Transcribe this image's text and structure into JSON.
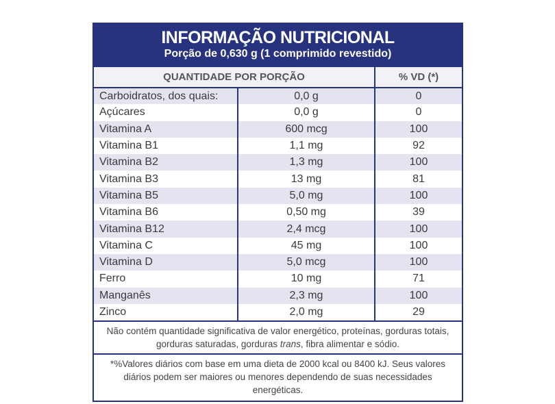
{
  "header": {
    "title": "INFORMAÇÃO NUTRICIONAL",
    "subtitle": "Porção de 0,630 g (1 comprimido revestido)"
  },
  "table": {
    "columns": [
      "QUANTIDADE POR PORÇÃO",
      "% VD (*)"
    ],
    "rows": [
      [
        "Carboidratos, dos quais:",
        "0,0 g",
        "0"
      ],
      [
        "Açúcares",
        "0,0 g",
        "0"
      ],
      [
        "Vitamina A",
        "600 mcg",
        "100"
      ],
      [
        "Vitamina B1",
        "1,1 mg",
        "92"
      ],
      [
        "Vitamina B2",
        "1,3 mg",
        "100"
      ],
      [
        "Vitamina B3",
        "13 mg",
        "81"
      ],
      [
        "Vitamina B5",
        "5,0 mg",
        "100"
      ],
      [
        "Vitamina B6",
        "0,50 mg",
        "39"
      ],
      [
        "Vitamina B12",
        "2,4 mcg",
        "100"
      ],
      [
        "Vitamina C",
        "45 mg",
        "100"
      ],
      [
        "Vitamina D",
        "5,0 mcg",
        "100"
      ],
      [
        "Ferro",
        "10 mg",
        "71"
      ],
      [
        "Manganês",
        "2,3 mg",
        "100"
      ],
      [
        "Zinco",
        "2,0 mg",
        "29"
      ]
    ]
  },
  "note": [
    "Não contém quantidade significativa de valor energético, proteínas, gorduras totais, gorduras saturadas, gorduras ",
    "trans",
    ", fibra alimentar e sódio."
  ],
  "footnote": "*%Valores diários com base em uma dieta de 2000 kcal ou 8400 kJ. Seus valores diários podem ser maiores ou menores dependendo de suas necessidades energéticas."
}
